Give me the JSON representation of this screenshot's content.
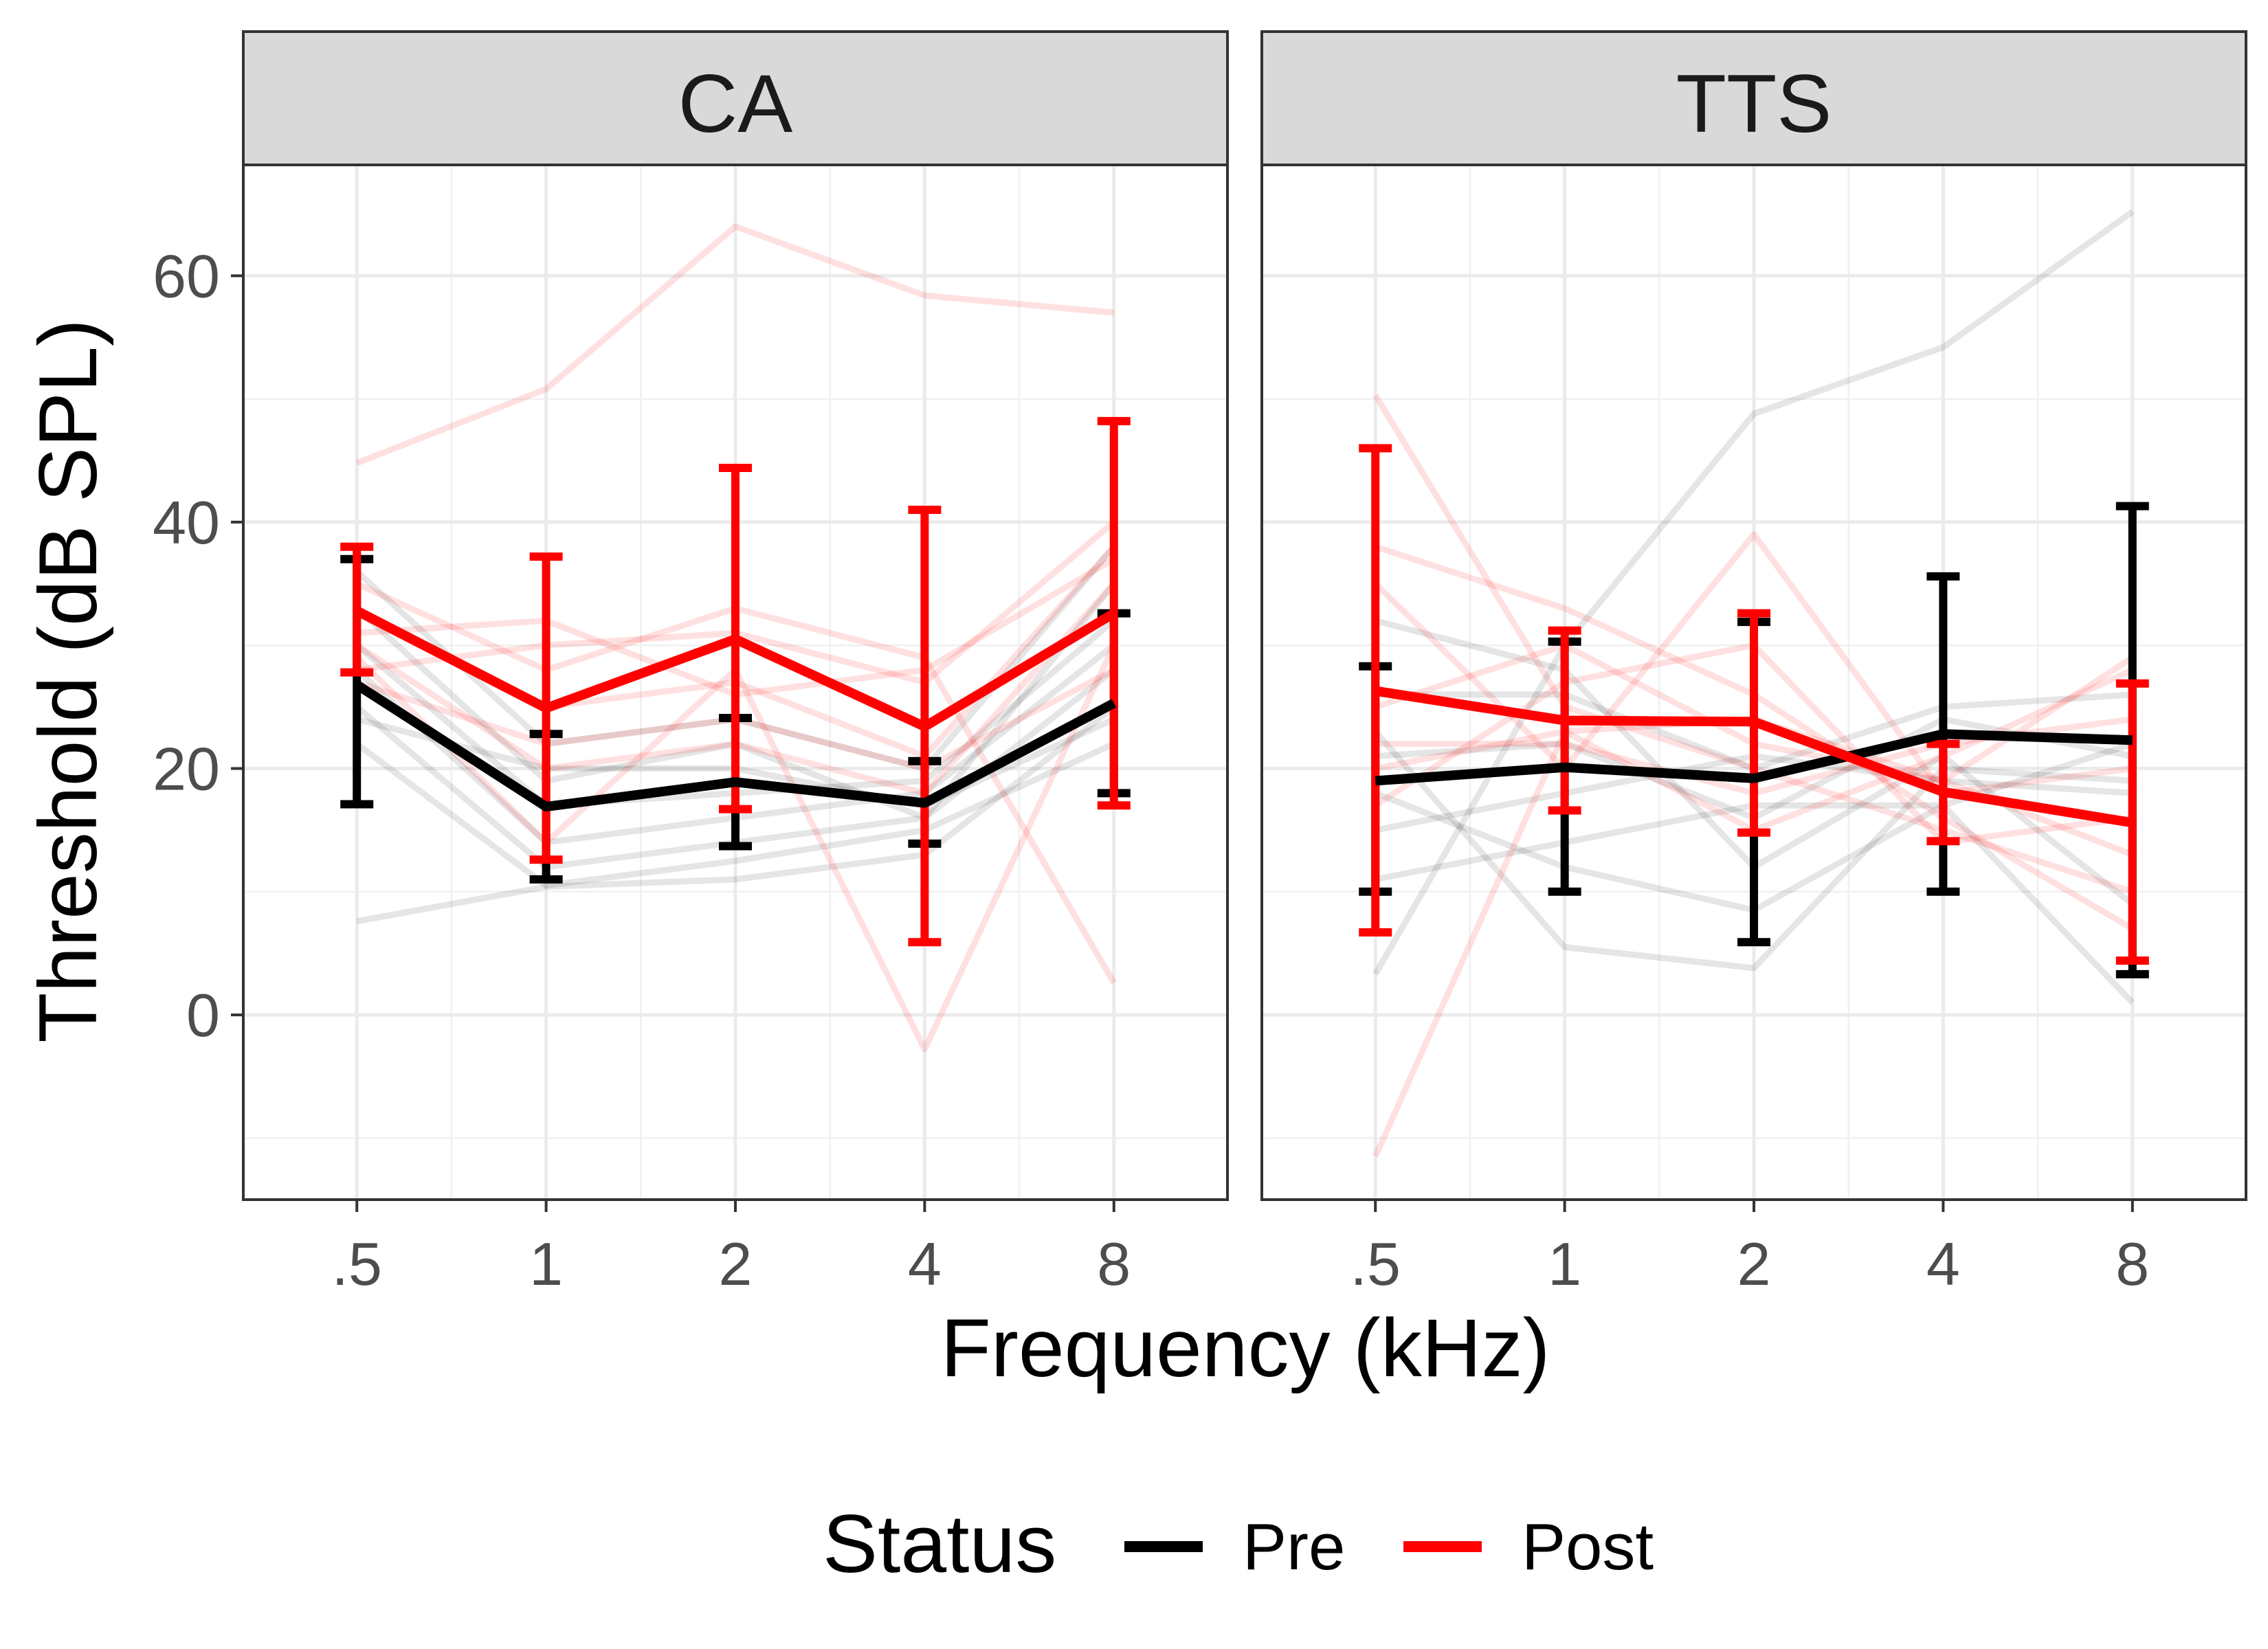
{
  "chart_data": {
    "type": "line",
    "xlabel": "Frequency (kHz)",
    "ylabel": "Threshold (dB SPL)",
    "x_categories": [
      ".5",
      "1",
      "2",
      "4",
      "8"
    ],
    "y_ticks": [
      0,
      20,
      40,
      60
    ],
    "ylim": [
      -15,
      69
    ],
    "grid": true,
    "legend": {
      "title": "Status",
      "position": "bottom",
      "entries": [
        {
          "name": "Pre",
          "color": "#000000"
        },
        {
          "name": "Post",
          "color": "#ff0000"
        }
      ]
    },
    "panels": [
      {
        "label": "CA",
        "series": [
          {
            "name": "Pre",
            "color": "#000000",
            "mean": [
              26.8,
              16.9,
              18.9,
              17.2,
              25.3
            ],
            "lower": [
              17.1,
              11.0,
              13.7,
              13.9,
              18.0
            ],
            "upper": [
              37.0,
              22.8,
              24.1,
              20.6,
              32.6
            ]
          },
          {
            "name": "Post",
            "color": "#ff0000",
            "mean": [
              32.8,
              24.9,
              30.5,
              23.4,
              32.6
            ],
            "lower": [
              27.8,
              12.6,
              16.7,
              5.9,
              17.0
            ],
            "upper": [
              38.0,
              37.2,
              44.4,
              41.0,
              48.2
            ]
          }
        ],
        "individual_pre": [
          [
            7.6,
            10.4,
            11.0,
            13.0,
            25.0
          ],
          [
            22.0,
            10.5,
            12.5,
            15.0,
            22.0
          ],
          [
            25.0,
            12.0,
            14.0,
            16.0,
            28.0
          ],
          [
            28.0,
            14.0,
            16.0,
            18.0,
            30.0
          ],
          [
            30.0,
            17.0,
            18.0,
            19.0,
            32.0
          ],
          [
            33.0,
            19.0,
            22.0,
            16.0,
            35.0
          ],
          [
            36.0,
            22.0,
            24.0,
            20.0,
            38.0
          ],
          [
            24.0,
            20.0,
            20.0,
            17.0,
            24.0
          ]
        ],
        "individual_post": [
          [
            44.8,
            50.8,
            64.0,
            58.4,
            57.0
          ],
          [
            31.0,
            32.0,
            26.0,
            28.0,
            37.0
          ],
          [
            29.0,
            14.0,
            28.0,
            -2.8,
            30.0
          ],
          [
            35.0,
            28.0,
            33.0,
            29.0,
            2.6
          ],
          [
            30.0,
            20.0,
            22.0,
            18.0,
            35.0
          ],
          [
            33.0,
            25.0,
            27.0,
            21.0,
            38.0
          ],
          [
            27.0,
            22.0,
            24.0,
            20.0,
            28.0
          ],
          [
            28.0,
            30.0,
            31.0,
            27.0,
            40.0
          ]
        ]
      },
      {
        "label": "TTS",
        "series": [
          {
            "name": "Pre",
            "color": "#000000",
            "mean": [
              19.0,
              20.1,
              19.2,
              22.8,
              22.3
            ],
            "lower": [
              10.0,
              10.0,
              5.9,
              10.0,
              3.3
            ],
            "upper": [
              28.3,
              30.3,
              31.9,
              35.6,
              41.3
            ]
          },
          {
            "name": "Post",
            "color": "#ff0000",
            "mean": [
              26.3,
              23.9,
              23.8,
              18.1,
              15.6
            ],
            "lower": [
              6.7,
              16.6,
              14.8,
              14.1,
              4.4
            ],
            "upper": [
              46.0,
              31.2,
              32.6,
              22.0,
              26.9
            ]
          }
        ],
        "individual_pre": [
          [
            3.3,
            30.0,
            48.8,
            54.2,
            65.2
          ],
          [
            11.0,
            14.0,
            17.0,
            17.0,
            22.0
          ],
          [
            23.0,
            5.5,
            3.8,
            20.0,
            19.0
          ],
          [
            18.0,
            12.0,
            8.5,
            17.0,
            1.0
          ],
          [
            26.0,
            26.0,
            20.0,
            25.0,
            26.0
          ],
          [
            32.0,
            28.0,
            12.0,
            21.0,
            9.0
          ],
          [
            15.0,
            18.0,
            21.0,
            19.0,
            18.0
          ],
          [
            21.0,
            22.0,
            16.0,
            24.0,
            21.0
          ]
        ],
        "individual_post": [
          [
            -11.5,
            23.0,
            24.0,
            19.0,
            29.0
          ],
          [
            50.3,
            25.0,
            20.0,
            15.0,
            10.0
          ],
          [
            38.0,
            33.0,
            26.0,
            16.0,
            7.0
          ],
          [
            35.0,
            20.0,
            39.0,
            18.0,
            20.0
          ],
          [
            20.0,
            23.0,
            15.0,
            21.0,
            28.0
          ],
          [
            25.0,
            30.0,
            22.0,
            19.0,
            13.0
          ],
          [
            17.0,
            27.0,
            30.0,
            14.0,
            16.0
          ],
          [
            22.0,
            22.0,
            18.0,
            22.0,
            24.0
          ]
        ]
      }
    ]
  }
}
